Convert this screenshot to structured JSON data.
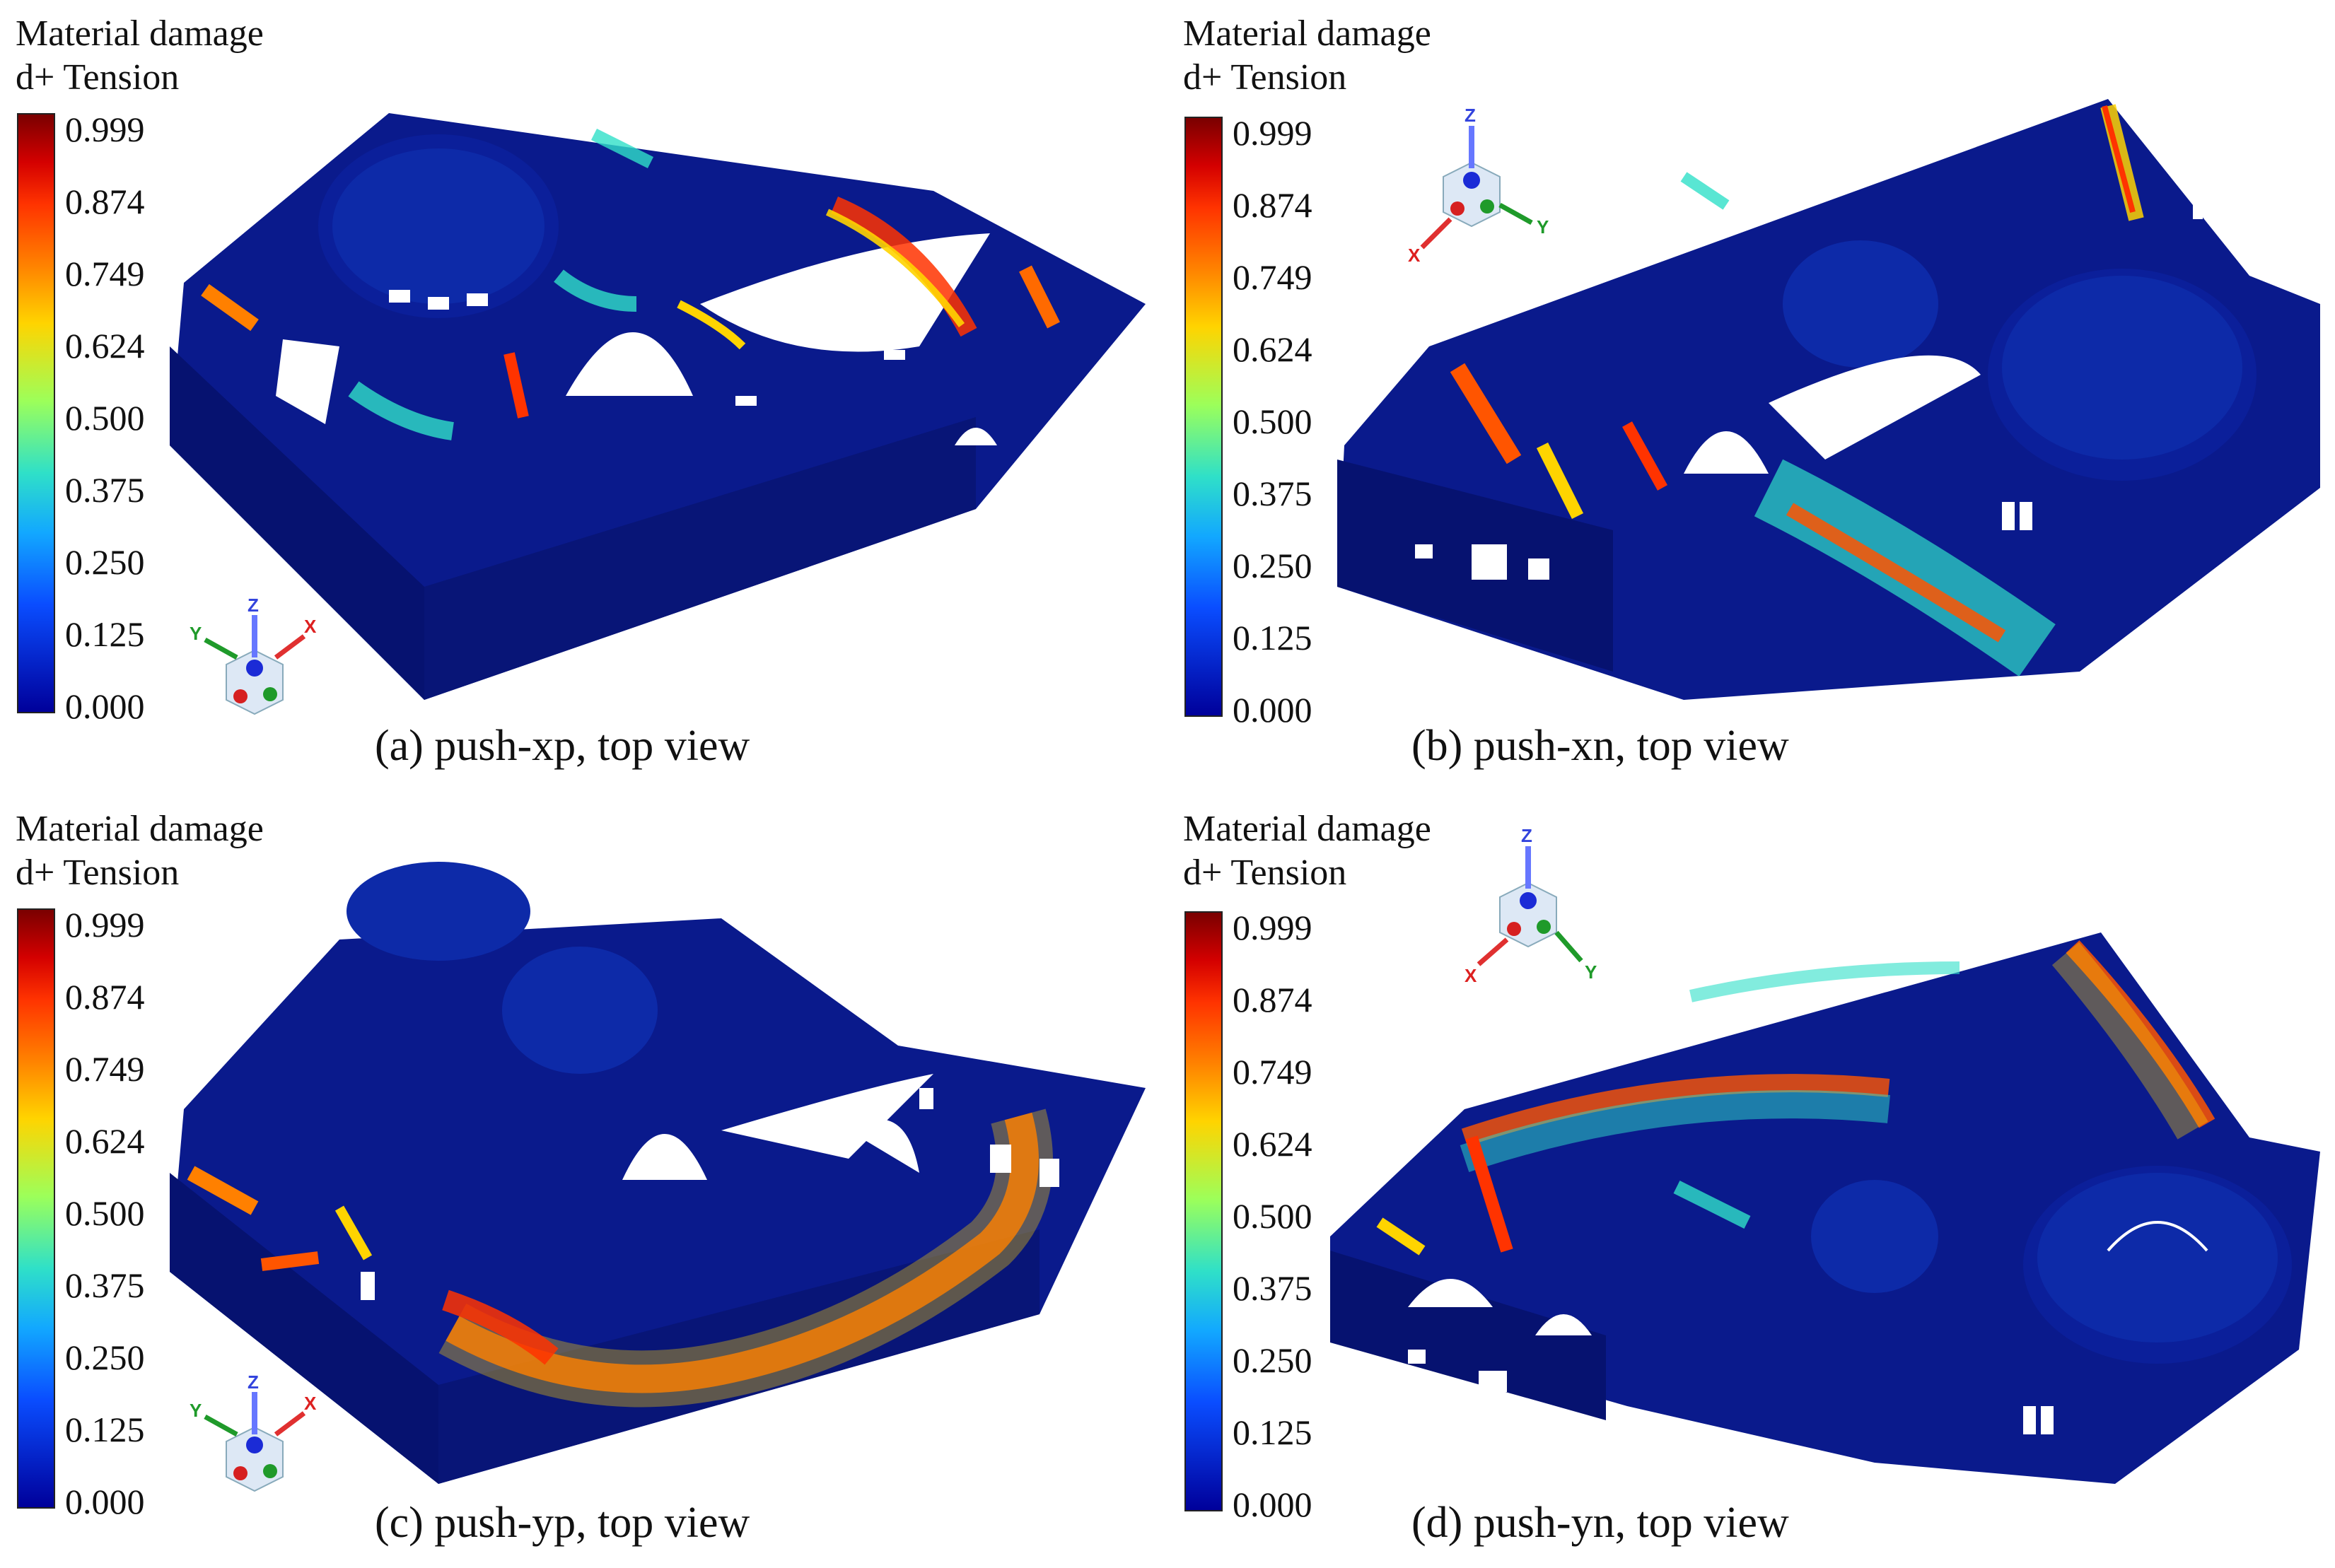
{
  "panels": [
    {
      "legend_title_1": "Material damage",
      "legend_title_2": "d+ Tension",
      "caption": "(a) push-xp, top view",
      "ticks": [
        "0.999",
        "0.874",
        "0.749",
        "0.624",
        "0.500",
        "0.375",
        "0.250",
        "0.125",
        "0.000"
      ],
      "axes": {
        "z": "Z",
        "x": "X",
        "y": "Y"
      }
    },
    {
      "legend_title_1": "Material damage",
      "legend_title_2": "d+ Tension",
      "caption": "(b) push-xn, top view",
      "ticks": [
        "0.999",
        "0.874",
        "0.749",
        "0.624",
        "0.500",
        "0.375",
        "0.250",
        "0.125",
        "0.000"
      ],
      "axes": {
        "z": "Z",
        "x": "X",
        "y": "Y"
      }
    },
    {
      "legend_title_1": "Material damage",
      "legend_title_2": "d+ Tension",
      "caption": "(c) push-yp, top view",
      "ticks": [
        "0.999",
        "0.874",
        "0.749",
        "0.624",
        "0.500",
        "0.375",
        "0.250",
        "0.125",
        "0.000"
      ],
      "axes": {
        "z": "Z",
        "x": "X",
        "y": "Y"
      }
    },
    {
      "legend_title_1": "Material damage",
      "legend_title_2": "d+ Tension",
      "caption": "(d) push-yn, top view",
      "ticks": [
        "0.999",
        "0.874",
        "0.749",
        "0.624",
        "0.500",
        "0.375",
        "0.250",
        "0.125",
        "0.000"
      ],
      "axes": {
        "z": "Z",
        "x": "X",
        "y": "Y"
      }
    }
  ],
  "colors": {
    "background": "#ffffff",
    "model_base": "#0a1a8c",
    "damage_high": "#d40000",
    "damage_mid": "#ffd400",
    "damage_low": "#2fe0c8"
  }
}
